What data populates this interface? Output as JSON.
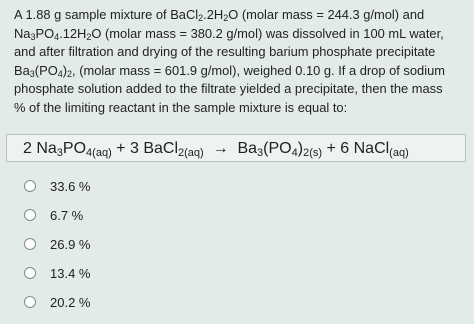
{
  "question": {
    "lines": [
      [
        {
          "text": "A 1.88 g sample mixture of BaCl"
        },
        {
          "text": "2",
          "sub": true
        },
        {
          "text": ".2H"
        },
        {
          "text": "2",
          "sub": true
        },
        {
          "text": "O (molar mass = 244.3 g/mol) and"
        }
      ],
      [
        {
          "text": "Na"
        },
        {
          "text": "3",
          "sub": true
        },
        {
          "text": "PO"
        },
        {
          "text": "4",
          "sub": true
        },
        {
          "text": ".12H"
        },
        {
          "text": "2",
          "sub": true
        },
        {
          "text": "O (molar mass = 380.2 g/mol) was dissolved in 100 mL water,"
        }
      ],
      [
        {
          "text": "and after filtration and drying of the resulting barium phosphate precipitate"
        }
      ],
      [
        {
          "text": "Ba"
        },
        {
          "text": "3",
          "sub": true
        },
        {
          "text": "(PO"
        },
        {
          "text": "4",
          "sub": true
        },
        {
          "text": ")"
        },
        {
          "text": "2",
          "sub": true
        },
        {
          "text": ", (molar mass = 601.9 g/mol), weighed 0.10 g. If a drop of sodium"
        }
      ],
      [
        {
          "text": "phosphate solution added to the filtrate yielded a precipitate, then the mass"
        }
      ],
      [
        {
          "text": "% of the limiting reactant in the sample mixture is equal to:"
        }
      ]
    ]
  },
  "equation": [
    {
      "text": "2 Na"
    },
    {
      "text": "3",
      "sub": true
    },
    {
      "text": "PO"
    },
    {
      "text": "4(aq)",
      "sub": true
    },
    {
      "text": " + 3 BaCl"
    },
    {
      "text": "2(aq)",
      "sub": true
    },
    {
      "text": "  →  Ba"
    },
    {
      "text": "3",
      "sub": true
    },
    {
      "text": "(PO"
    },
    {
      "text": "4",
      "sub": true
    },
    {
      "text": ")"
    },
    {
      "text": "2(s)",
      "sub": true
    },
    {
      "text": " + 6 NaCl"
    },
    {
      "text": "(aq)",
      "sub": true
    }
  ],
  "options": [
    "33.6 %",
    "6.7 %",
    "26.9 %",
    "13.4 %",
    "20.2 %"
  ]
}
